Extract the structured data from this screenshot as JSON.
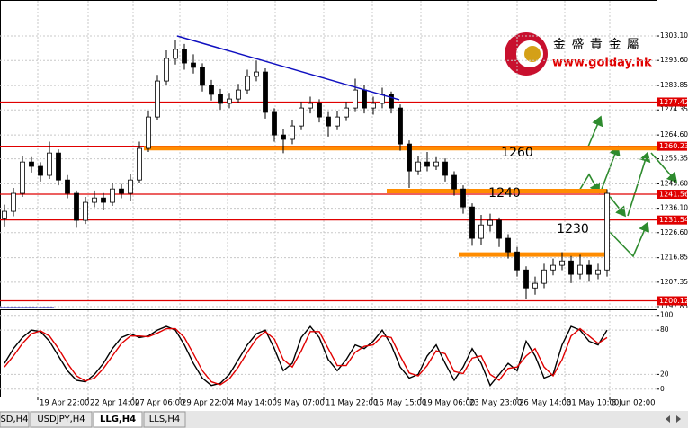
{
  "logo": {
    "name": "金 盛 貴 金 屬",
    "url": "www.golday.hk"
  },
  "tabs": [
    "SD,H4",
    "USDJPY,H4",
    "LLG,H4",
    "LLS,H4"
  ],
  "chart_data": [
    {
      "type": "candlestick",
      "up_color": "#ffffff",
      "down_color": "#000000",
      "wick_color": "#000000",
      "open": [
        1232.0,
        1234.9,
        1241.9,
        1254.1,
        1252.4,
        1248.9,
        1257.6,
        1247.1,
        1241.9,
        1231.4,
        1238.4,
        1240.1,
        1238.4,
        1243.6,
        1241.9,
        1247.1,
        1259.4,
        1271.6,
        1285.6,
        1294.4,
        1297.9,
        1292.6,
        1290.9,
        1283.9,
        1280.4,
        1276.9,
        1278.6,
        1282.1,
        1287.4,
        1289.1,
        1273.4,
        1264.6,
        1262.9,
        1268.1,
        1275.1,
        1276.9,
        1271.6,
        1268.1,
        1271.6,
        1275.1,
        1282.1,
        1275.1,
        1276.9,
        1280.4,
        1275.1,
        1261.1,
        1250.6,
        1254.1,
        1252.4,
        1254.1,
        1248.9,
        1243.6,
        1236.6,
        1224.4,
        1229.6,
        1231.4,
        1224.4,
        1219.1,
        1212.1,
        1205.1,
        1206.9,
        1212.1,
        1213.9,
        1215.6,
        1210.4,
        1213.9,
        1210.4,
        1212.1
      ],
      "high": [
        1237.5,
        1244.0,
        1256.5,
        1256.0,
        1254.0,
        1262.0,
        1259.0,
        1249.0,
        1243.0,
        1240.5,
        1243.0,
        1242.0,
        1246.0,
        1245.5,
        1249.5,
        1262.0,
        1274.0,
        1288.0,
        1297.5,
        1301.5,
        1300.0,
        1296.0,
        1292.5,
        1286.0,
        1282.5,
        1281.0,
        1284.5,
        1290.0,
        1293.5,
        1290.5,
        1275.0,
        1267.0,
        1270.5,
        1277.5,
        1279.5,
        1278.5,
        1273.5,
        1274.0,
        1277.5,
        1286.5,
        1284.0,
        1279.5,
        1283.0,
        1281.5,
        1276.5,
        1262.5,
        1256.5,
        1258.0,
        1256.0,
        1255.5,
        1250.5,
        1245.0,
        1238.0,
        1233.5,
        1234.0,
        1232.5,
        1226.0,
        1221.0,
        1213.5,
        1209.5,
        1214.5,
        1216.5,
        1219.0,
        1217.5,
        1218.0,
        1216.0,
        1214.5,
        1243.5
      ],
      "low": [
        1229.0,
        1233.0,
        1240.5,
        1250.0,
        1246.5,
        1247.5,
        1245.0,
        1240.0,
        1228.5,
        1230.0,
        1236.5,
        1235.5,
        1237.0,
        1240.0,
        1239.0,
        1246.0,
        1258.0,
        1270.5,
        1284.0,
        1292.0,
        1290.0,
        1288.5,
        1281.5,
        1278.0,
        1274.5,
        1275.0,
        1277.0,
        1280.5,
        1285.5,
        1271.0,
        1262.0,
        1257.5,
        1261.0,
        1266.5,
        1273.0,
        1269.5,
        1264.0,
        1266.5,
        1270.0,
        1273.5,
        1273.0,
        1272.5,
        1275.0,
        1273.0,
        1258.5,
        1244.0,
        1249.0,
        1250.5,
        1251.0,
        1246.5,
        1241.0,
        1234.0,
        1221.5,
        1222.0,
        1227.0,
        1221.0,
        1216.5,
        1209.5,
        1201.0,
        1202.5,
        1205.0,
        1210.0,
        1212.0,
        1207.0,
        1208.5,
        1207.5,
        1208.5,
        1209.5
      ],
      "close": [
        1234.9,
        1241.9,
        1254.1,
        1252.4,
        1248.9,
        1257.6,
        1247.1,
        1241.9,
        1231.4,
        1238.4,
        1240.1,
        1238.4,
        1243.6,
        1241.9,
        1247.1,
        1259.4,
        1271.6,
        1285.6,
        1294.4,
        1297.9,
        1292.6,
        1290.9,
        1283.9,
        1280.4,
        1276.9,
        1278.6,
        1282.1,
        1287.4,
        1289.1,
        1273.4,
        1264.6,
        1262.9,
        1268.1,
        1275.1,
        1276.9,
        1271.6,
        1268.1,
        1271.6,
        1275.1,
        1282.1,
        1275.1,
        1276.9,
        1280.4,
        1275.1,
        1261.1,
        1250.6,
        1254.1,
        1252.4,
        1254.1,
        1248.9,
        1243.6,
        1236.6,
        1224.4,
        1229.6,
        1231.4,
        1224.4,
        1219.1,
        1212.1,
        1205.1,
        1206.9,
        1212.1,
        1213.9,
        1215.6,
        1210.4,
        1213.9,
        1210.4,
        1212.1,
        1241.9
      ],
      "xlim": [
        -0.5,
        72.5
      ],
      "xticks": [
        {
          "value": 3.7,
          "label": "19 Apr 22:00"
        },
        {
          "value": 9.3,
          "label": "22 Apr 14:00"
        },
        {
          "value": 14.3,
          "label": "27 Apr 06:00"
        },
        {
          "value": 19.5,
          "label": "29 Apr 22:00"
        },
        {
          "value": 24.8,
          "label": "4 May 14:00"
        },
        {
          "value": 30.1,
          "label": "9 May 07:00"
        },
        {
          "value": 35.5,
          "label": "11 May 22:00"
        },
        {
          "value": 40.9,
          "label": "16 May 15:00"
        },
        {
          "value": 46.3,
          "label": "19 May 06:00"
        },
        {
          "value": 51.5,
          "label": "23 May 23:00"
        },
        {
          "value": 57,
          "label": "26 May 14:00"
        },
        {
          "value": 62.3,
          "label": "31 May 10:00"
        },
        {
          "value": 67.3,
          "label": "3 Jun 02:00"
        }
      ],
      "ylim": [
        1197.5,
        1315
      ],
      "yticks": [
        {
          "value": 1303.1,
          "label": "1303.10"
        },
        {
          "value": 1293.6,
          "label": "1293.60"
        },
        1283.85,
        1274.35,
        {
          "value": 1264.6,
          "label": "1264.60"
        },
        1255.35,
        {
          "value": 1245.6,
          "label": "1245.60"
        },
        {
          "value": 1236.1,
          "label": "1236.10"
        },
        {
          "value": 1226.6,
          "label": "1226.60"
        },
        1216.85,
        1207.35,
        1197.85
      ],
      "grid": true,
      "levels": [
        1277.42,
        1260.23,
        1241.56,
        1231.54,
        1200.12
      ],
      "level_color": "#e00000",
      "zones": [
        {
          "y": 1259.5,
          "x": [
            15.5,
            72.5
          ]
        },
        {
          "y": 1242.8,
          "x": [
            42.5,
            67.0
          ]
        },
        {
          "y": 1218.1,
          "x": [
            50.5,
            66.7
          ]
        }
      ],
      "zone_color": "#ff8c00",
      "trendline": {
        "x": [
          19.2,
          43.9
        ],
        "y": [
          1303.1,
          1278.3
        ],
        "color": "#1010c0"
      },
      "annotations": [
        {
          "text": "1260",
          "x": 57.0,
          "y": 1257.6
        },
        {
          "text": "1240",
          "x": 55.6,
          "y": 1241.9
        },
        {
          "text": "1230",
          "x": 63.2,
          "y": 1227.9
        }
      ]
    },
    {
      "type": "line",
      "series": [
        {
          "color": "#000000",
          "values": [
            35,
            55,
            70,
            80,
            78,
            65,
            45,
            25,
            12,
            10,
            20,
            35,
            55,
            70,
            75,
            70,
            72,
            80,
            85,
            80,
            60,
            35,
            15,
            5,
            8,
            20,
            40,
            60,
            75,
            80,
            55,
            25,
            35,
            70,
            85,
            70,
            40,
            25,
            40,
            60,
            55,
            65,
            80,
            60,
            30,
            15,
            20,
            45,
            60,
            35,
            12,
            30,
            55,
            35,
            5,
            20,
            35,
            25,
            65,
            45,
            15,
            20,
            60,
            85,
            80,
            65,
            60,
            80
          ]
        },
        {
          "color": "#e00000",
          "values": [
            30,
            45,
            62,
            75,
            79,
            72,
            55,
            35,
            18,
            11,
            15,
            28,
            45,
            62,
            72,
            72,
            71,
            76,
            82,
            82,
            70,
            48,
            25,
            10,
            6,
            14,
            30,
            50,
            68,
            78,
            68,
            40,
            30,
            52,
            78,
            78,
            55,
            32,
            32,
            50,
            58,
            60,
            72,
            70,
            45,
            22,
            18,
            32,
            52,
            48,
            24,
            21,
            42,
            45,
            20,
            12,
            28,
            30,
            45,
            55,
            30,
            18,
            40,
            72,
            82,
            72,
            62,
            70
          ]
        }
      ],
      "ylim": [
        -10,
        107
      ],
      "yticks": [
        100,
        80,
        20,
        0
      ],
      "grid": true
    }
  ]
}
